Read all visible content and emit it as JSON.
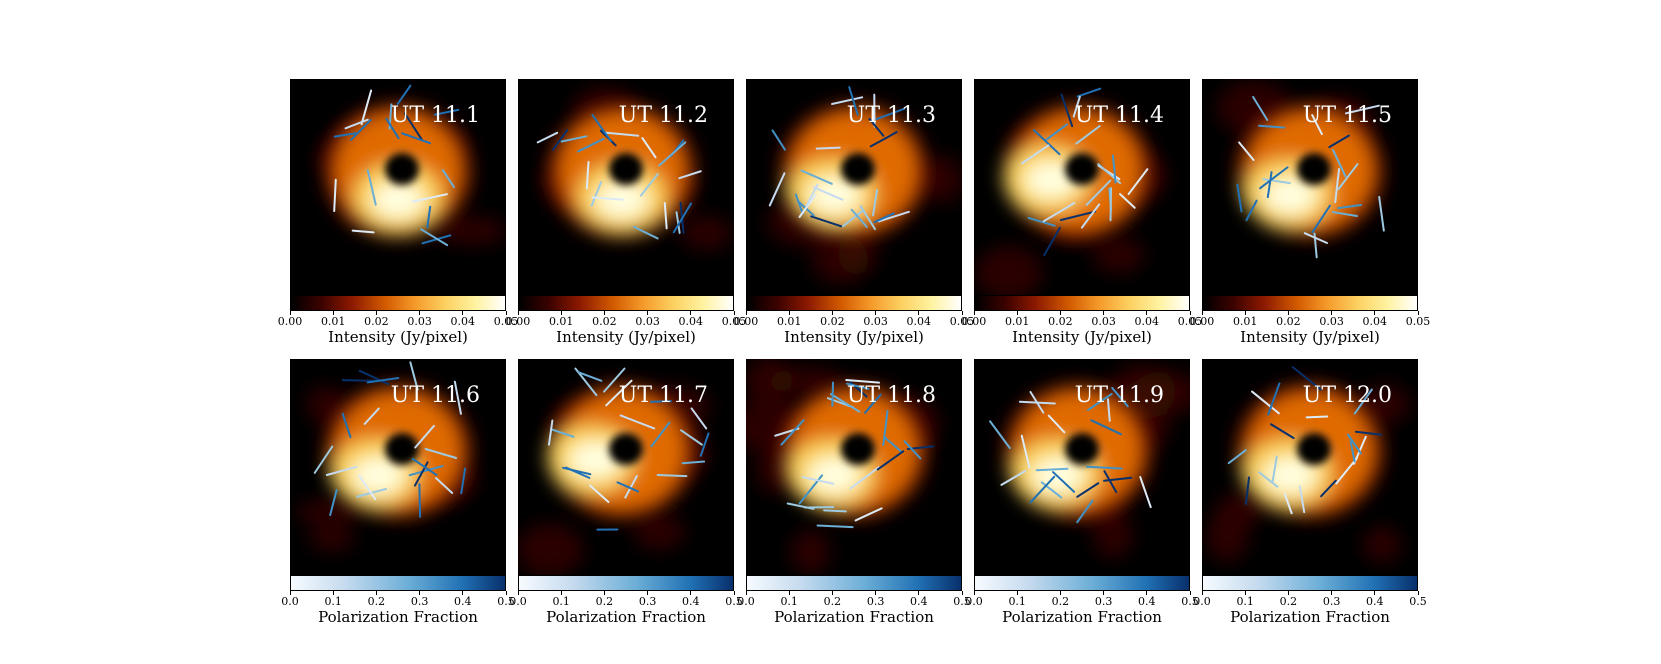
{
  "chart_data": {
    "type": "heatmap",
    "title": "",
    "rows": [
      {
        "colorbar": {
          "label": "Intensity (Jy/pixel)",
          "colormap": "afmhot",
          "range": [
            0.0,
            0.05
          ],
          "ticks": [
            "0.00",
            "0.01",
            "0.02",
            "0.03",
            "0.04",
            "0.05"
          ]
        },
        "panels": [
          {
            "label": "UT 11.1",
            "bright_side": "bottom",
            "ticks_count": 18
          },
          {
            "label": "UT 11.2",
            "bright_side": "bottom",
            "ticks_count": 20
          },
          {
            "label": "UT 11.3",
            "bright_side": "bottom-left",
            "ticks_count": 22
          },
          {
            "label": "UT 11.4",
            "bright_side": "left",
            "ticks_count": 20
          },
          {
            "label": "UT 11.5",
            "bright_side": "bottom-left",
            "ticks_count": 20
          }
        ]
      },
      {
        "colorbar": {
          "label": "Polarization Fraction",
          "colormap": "Blues",
          "range": [
            0.0,
            0.5
          ],
          "ticks": [
            "0.0",
            "0.1",
            "0.2",
            "0.3",
            "0.4",
            "0.5"
          ]
        },
        "panels": [
          {
            "label": "UT 11.6",
            "bright_side": "bottom-left",
            "ticks_count": 20
          },
          {
            "label": "UT 11.7",
            "bright_side": "left",
            "ticks_count": 20
          },
          {
            "label": "UT 11.8",
            "bright_side": "bottom-left",
            "ticks_count": 22
          },
          {
            "label": "UT 11.9",
            "bright_side": "bottom-left",
            "ticks_count": 20
          },
          {
            "label": "UT 12.0",
            "bright_side": "bottom-left",
            "ticks_count": 18
          }
        ]
      }
    ]
  },
  "colors": {
    "background": "#000000",
    "label": "#ffffff",
    "tick_dark": "#08306b",
    "tick_light": "#deebf7"
  }
}
